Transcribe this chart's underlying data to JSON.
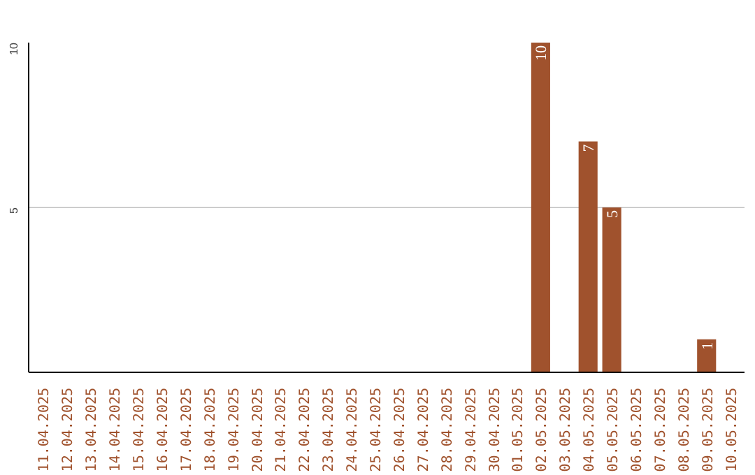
{
  "chart_data": {
    "type": "bar",
    "categories": [
      "11.04.2025",
      "12.04.2025",
      "13.04.2025",
      "14.04.2025",
      "15.04.2025",
      "16.04.2025",
      "17.04.2025",
      "18.04.2025",
      "19.04.2025",
      "20.04.2025",
      "21.04.2025",
      "22.04.2025",
      "23.04.2025",
      "24.04.2025",
      "25.04.2025",
      "26.04.2025",
      "27.04.2025",
      "28.04.2025",
      "29.04.2025",
      "30.04.2025",
      "01.05.2025",
      "02.05.2025",
      "03.05.2025",
      "04.05.2025",
      "05.05.2025",
      "06.05.2025",
      "07.05.2025",
      "08.05.2025",
      "09.05.2025",
      "10.05.2025"
    ],
    "values": [
      0,
      0,
      0,
      0,
      0,
      0,
      0,
      0,
      0,
      0,
      0,
      0,
      0,
      0,
      0,
      0,
      0,
      0,
      0,
      0,
      0,
      10,
      0,
      7,
      5,
      0,
      0,
      0,
      1,
      0
    ],
    "value_labels": [
      null,
      null,
      null,
      null,
      null,
      null,
      null,
      null,
      null,
      null,
      null,
      null,
      null,
      null,
      null,
      null,
      null,
      null,
      null,
      null,
      null,
      "10",
      null,
      "7",
      "5",
      null,
      null,
      null,
      "1",
      null
    ],
    "color": "#a0522d",
    "ylim": [
      0,
      10
    ],
    "yticks": [
      5,
      10
    ],
    "grid": "y"
  }
}
